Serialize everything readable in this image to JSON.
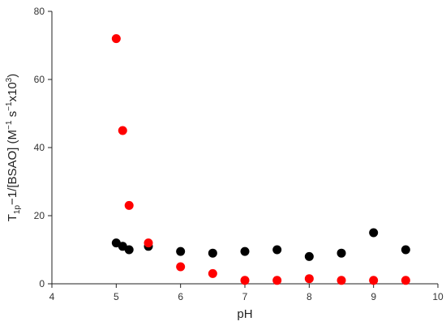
{
  "chart_data": {
    "type": "scatter",
    "title": "",
    "xlabel": "pH",
    "ylabel_parts": {
      "base": "T",
      "sub": "1p",
      "mid": "−1/[BSAO] (M",
      "sup1": "−1",
      "mid2": " s",
      "sup2": "−1",
      "mid3": "x10",
      "sup3": "3",
      "end": ")"
    },
    "xlim": [
      4,
      10
    ],
    "ylim": [
      0,
      80
    ],
    "xticks": [
      4,
      5,
      6,
      7,
      8,
      9,
      10
    ],
    "yticks": [
      0,
      20,
      40,
      60,
      80
    ],
    "grid": false,
    "legend": "none",
    "series": [
      {
        "color": "#000000",
        "points": [
          {
            "x": 5.0,
            "y": 12
          },
          {
            "x": 5.1,
            "y": 11
          },
          {
            "x": 5.2,
            "y": 10
          },
          {
            "x": 5.5,
            "y": 11
          },
          {
            "x": 6.0,
            "y": 9.5
          },
          {
            "x": 6.5,
            "y": 9
          },
          {
            "x": 7.0,
            "y": 9.5
          },
          {
            "x": 7.5,
            "y": 10
          },
          {
            "x": 8.0,
            "y": 8
          },
          {
            "x": 8.5,
            "y": 9
          },
          {
            "x": 9.0,
            "y": 15
          },
          {
            "x": 9.5,
            "y": 10
          }
        ]
      },
      {
        "color": "#ff0000",
        "points": [
          {
            "x": 5.0,
            "y": 72
          },
          {
            "x": 5.1,
            "y": 45
          },
          {
            "x": 5.2,
            "y": 23
          },
          {
            "x": 5.5,
            "y": 12
          },
          {
            "x": 6.0,
            "y": 5
          },
          {
            "x": 6.5,
            "y": 3
          },
          {
            "x": 7.0,
            "y": 1
          },
          {
            "x": 7.5,
            "y": 1
          },
          {
            "x": 8.0,
            "y": 1.5
          },
          {
            "x": 8.5,
            "y": 1
          },
          {
            "x": 9.0,
            "y": 1
          },
          {
            "x": 9.5,
            "y": 1
          }
        ]
      }
    ]
  }
}
